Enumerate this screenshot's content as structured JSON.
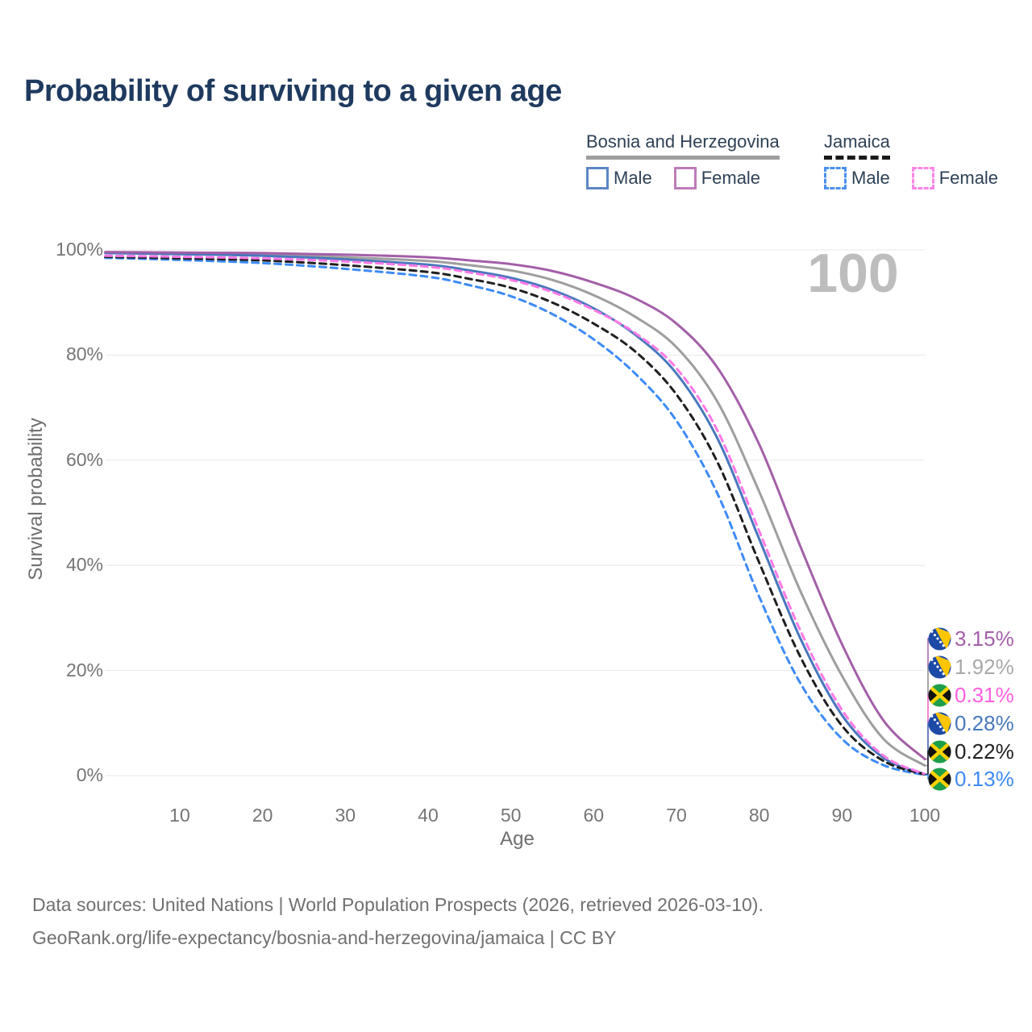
{
  "title": "Probability of surviving to a given age",
  "legend": {
    "groups": [
      {
        "country": "Bosnia and Herzegovina",
        "line_style": "solid",
        "underline_color": "#9e9e9e",
        "items": [
          {
            "label": "Male",
            "color": "#5b87c5"
          },
          {
            "label": "Female",
            "color": "#bd7cba"
          }
        ]
      },
      {
        "country": "Jamaica",
        "line_style": "dashed",
        "underline_color": "#1a1a1a",
        "items": [
          {
            "label": "Male",
            "color": "#4a90f0"
          },
          {
            "label": "Female",
            "color": "#ff85e8"
          }
        ]
      }
    ]
  },
  "chart_data": {
    "type": "line",
    "title": "Probability of surviving to a given age",
    "xlabel": "Age",
    "ylabel": "Survival probability",
    "xlim": [
      1,
      100
    ],
    "ylim": [
      0,
      100
    ],
    "grid": "horizontal",
    "legend_position": "top-right",
    "watermark": "100",
    "x_ticks": [
      {
        "label": "10",
        "value": 10
      },
      {
        "label": "20",
        "value": 20
      },
      {
        "label": "30",
        "value": 30
      },
      {
        "label": "40",
        "value": 40
      },
      {
        "label": "50",
        "value": 50
      },
      {
        "label": "60",
        "value": 60
      },
      {
        "label": "70",
        "value": 70
      },
      {
        "label": "80",
        "value": 80
      },
      {
        "label": "90",
        "value": 90
      },
      {
        "label": "100",
        "value": 100
      }
    ],
    "y_ticks": [
      {
        "label": "0%",
        "value": 0
      },
      {
        "label": "20%",
        "value": 20
      },
      {
        "label": "40%",
        "value": 40
      },
      {
        "label": "60%",
        "value": 60
      },
      {
        "label": "80%",
        "value": 80
      },
      {
        "label": "100%",
        "value": 100
      }
    ],
    "ages": [
      1,
      10,
      20,
      30,
      40,
      45,
      50,
      55,
      60,
      65,
      70,
      75,
      80,
      85,
      90,
      95,
      100
    ],
    "series": [
      {
        "key": "bih_total",
        "name": "Combined — Bosnia and Herzegovina",
        "color": "#9e9e9e",
        "dash": "solid",
        "values": [
          99.5,
          99.4,
          99.1,
          98.6,
          97.9,
          97.1,
          96.1,
          94.3,
          91.4,
          87.3,
          81.5,
          71.0,
          54.0,
          35.0,
          19.0,
          7.0,
          1.92
        ],
        "end_label": "1.92%"
      },
      {
        "key": "bih_male",
        "name": "Male — Bosnia and Herzegovina",
        "color": "#4878bc",
        "dash": "solid",
        "values": [
          99.4,
          99.2,
          98.9,
          98.2,
          97.2,
          96.1,
          94.7,
          92.4,
          88.9,
          83.9,
          76.5,
          64.0,
          45.0,
          26.0,
          11.5,
          3.4,
          0.28
        ],
        "end_label": "0.28%"
      },
      {
        "key": "bih_female",
        "name": "Female — Bosnia and Herzegovina",
        "color": "#a35fa8",
        "dash": "solid",
        "values": [
          99.6,
          99.5,
          99.4,
          99.1,
          98.6,
          98.0,
          97.3,
          96.0,
          93.8,
          90.8,
          86.0,
          77.5,
          63.0,
          43.5,
          25.0,
          10.5,
          3.15
        ],
        "end_label": "3.15%"
      },
      {
        "key": "jam_male",
        "name": "Male — Jamaica",
        "color": "#3d8bf5",
        "dash": "dashed",
        "values": [
          98.5,
          98.1,
          97.5,
          96.4,
          94.9,
          93.3,
          91.2,
          87.8,
          83.0,
          76.5,
          67.5,
          53.5,
          34.0,
          17.5,
          7.0,
          2.0,
          0.13
        ],
        "end_label": "0.13%"
      },
      {
        "key": "jam_total",
        "name": "Combined — Jamaica",
        "color": "#1f1f1f",
        "dash": "dashed",
        "values": [
          98.7,
          98.4,
          98.0,
          97.1,
          95.8,
          94.5,
          92.8,
          90.0,
          86.0,
          80.7,
          72.5,
          59.5,
          40.5,
          22.5,
          9.5,
          2.8,
          0.22
        ],
        "end_label": "0.22%"
      },
      {
        "key": "jam_female",
        "name": "Female — Jamaica",
        "color": "#ff78e6",
        "dash": "dashed",
        "values": [
          98.9,
          98.7,
          98.4,
          97.8,
          96.8,
          95.7,
          94.3,
          92.0,
          88.6,
          84.2,
          77.5,
          65.5,
          46.5,
          27.5,
          12.5,
          3.8,
          0.31
        ],
        "end_label": "0.31%"
      }
    ]
  },
  "tail_labels": [
    {
      "key": "bih_female",
      "country": "Bosnia and Herzegovina",
      "value": "3.15%",
      "color": "#a35fa8"
    },
    {
      "key": "bih_total",
      "country": "Bosnia and Herzegovina",
      "value": "1.92%",
      "color": "#a8a8a8"
    },
    {
      "key": "jam_female",
      "country": "Jamaica",
      "value": "0.31%",
      "color": "#ff5fe0"
    },
    {
      "key": "bih_male",
      "country": "Bosnia and Herzegovina",
      "value": "0.28%",
      "color": "#4878bc"
    },
    {
      "key": "jam_total",
      "country": "Jamaica",
      "value": "0.22%",
      "color": "#212121"
    },
    {
      "key": "jam_male",
      "country": "Jamaica",
      "value": "0.13%",
      "color": "#3d8bf5"
    }
  ],
  "axes": {
    "y_title": "Survival probability",
    "x_title": "Age"
  },
  "footer": {
    "line1": "Data sources: United Nations | World Population Prospects (2026, retrieved 2026-03-10).",
    "line2": "GeoRank.org/life-expectancy/bosnia-and-herzegovina/jamaica | CC BY"
  }
}
